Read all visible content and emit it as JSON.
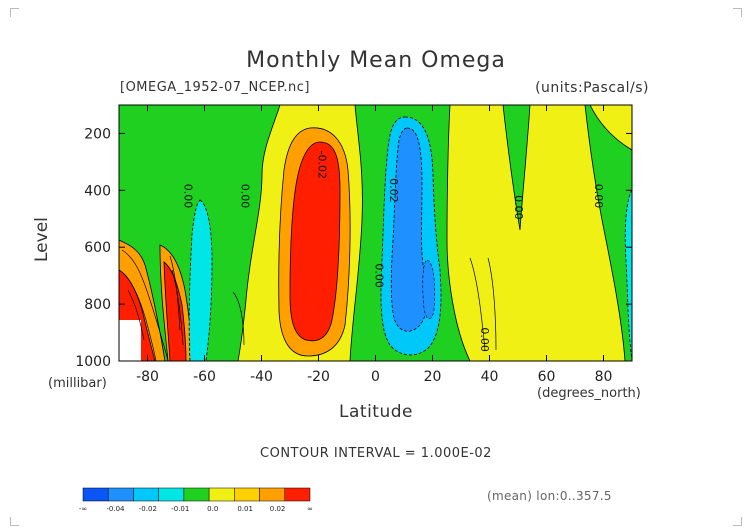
{
  "chart_data": {
    "type": "heatmap",
    "title": "Monthly Mean Omega",
    "file_label": "[OMEGA_1952-07_NCEP.nc]",
    "units_label": "(units:Pascal/s)",
    "xlabel": "Latitude",
    "x_unit": "(degrees_north)",
    "ylabel": "Level",
    "y_unit": "(millibar)",
    "xlim": [
      -90,
      90
    ],
    "ylim": [
      1000,
      100
    ],
    "x_ticks": [
      "-80",
      "-60",
      "-40",
      "-20",
      "0",
      "20",
      "40",
      "60",
      "80"
    ],
    "x_tick_values": [
      -80,
      -60,
      -40,
      -20,
      0,
      20,
      40,
      60,
      80
    ],
    "y_ticks": [
      "200",
      "400",
      "600",
      "800",
      "1000"
    ],
    "y_tick_values": [
      200,
      400,
      600,
      800,
      1000
    ],
    "contour_labels": [
      {
        "text": "0.00",
        "x": -67,
        "y": 420
      },
      {
        "text": "-0.02",
        "x": -20,
        "y": 310
      },
      {
        "text": "0.02",
        "x": 5,
        "y": 400
      },
      {
        "text": "0.00",
        "x": 0,
        "y": 700
      },
      {
        "text": "0.00",
        "x": 49,
        "y": 460
      },
      {
        "text": "0.00",
        "x": 37,
        "y": 925
      },
      {
        "text": "0.00",
        "x": 77,
        "y": 420
      },
      {
        "text": "0.00",
        "x": -47,
        "y": 420
      }
    ],
    "contour_interval": "CONTOUR INTERVAL = 1.000E-02",
    "colorbar": {
      "colors": [
        "#0a55f5",
        "#1e90ff",
        "#00c8f8",
        "#00e6e6",
        "#20d020",
        "#f0f014",
        "#ffd000",
        "#ffa000",
        "#ff1e00"
      ],
      "labels": [
        "-∞",
        "-0.04",
        "-0.02",
        "-0.01",
        "0.0",
        "0.01",
        "0.02",
        "∞"
      ]
    },
    "note": "(mean) lon:0..357.5"
  }
}
